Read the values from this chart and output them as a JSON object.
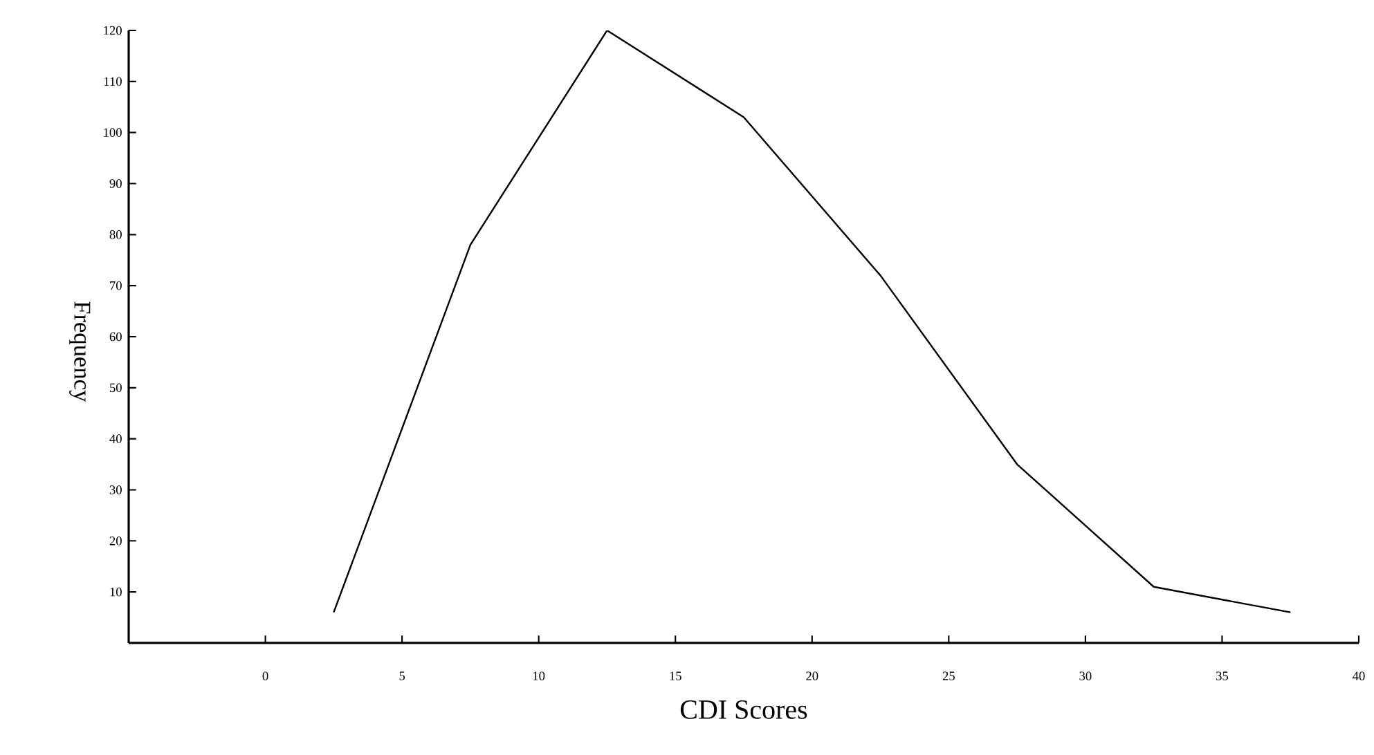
{
  "chart_data": {
    "type": "line",
    "xlabel": "CDI Scores",
    "ylabel": "Frequency",
    "x": [
      2.5,
      7.5,
      12.5,
      17.5,
      22.5,
      27.5,
      32.5,
      37.5
    ],
    "series": [
      {
        "color": "#000000",
        "values": [
          6,
          78,
          120,
          103,
          72,
          35,
          11,
          6
        ]
      }
    ],
    "xlim": [
      -5,
      40
    ],
    "ylim": [
      0,
      120
    ],
    "xticks": [
      0,
      5,
      10,
      15,
      20,
      25,
      30,
      35,
      40
    ],
    "yticks": [
      10,
      20,
      30,
      40,
      50,
      60,
      70,
      80,
      90,
      100,
      110,
      120
    ],
    "grid": false,
    "marker": "none",
    "line_style": "solid"
  }
}
